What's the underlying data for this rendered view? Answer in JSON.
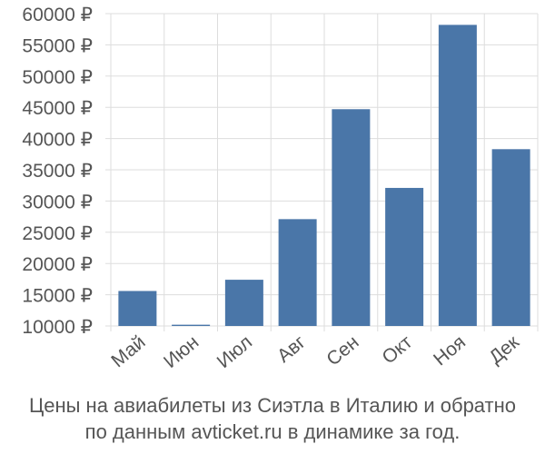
{
  "chart_data": {
    "type": "bar",
    "categories": [
      "Май",
      "Июн",
      "Июл",
      "Авг",
      "Сен",
      "Окт",
      "Ноя",
      "Дек"
    ],
    "values": [
      15600,
      10200,
      17400,
      27100,
      44700,
      32100,
      58200,
      38300
    ],
    "ylim": [
      10000,
      60000
    ],
    "yticks": [
      10000,
      15000,
      20000,
      25000,
      30000,
      35000,
      40000,
      45000,
      50000,
      55000,
      60000
    ],
    "ytick_labels": [
      "10000 ₽",
      "15000 ₽",
      "20000 ₽",
      "25000 ₽",
      "30000 ₽",
      "35000 ₽",
      "40000 ₽",
      "45000 ₽",
      "50000 ₽",
      "55000 ₽",
      "60000 ₽"
    ],
    "grid": true,
    "bar_color": "#4a76a8",
    "grid_color": "#dddddd",
    "text_color": "#555555"
  },
  "caption": {
    "line1": "Цены на авиабилеты из Сиэтла в Италию и обратно",
    "line2": "по данным avticket.ru в динамике за год."
  }
}
